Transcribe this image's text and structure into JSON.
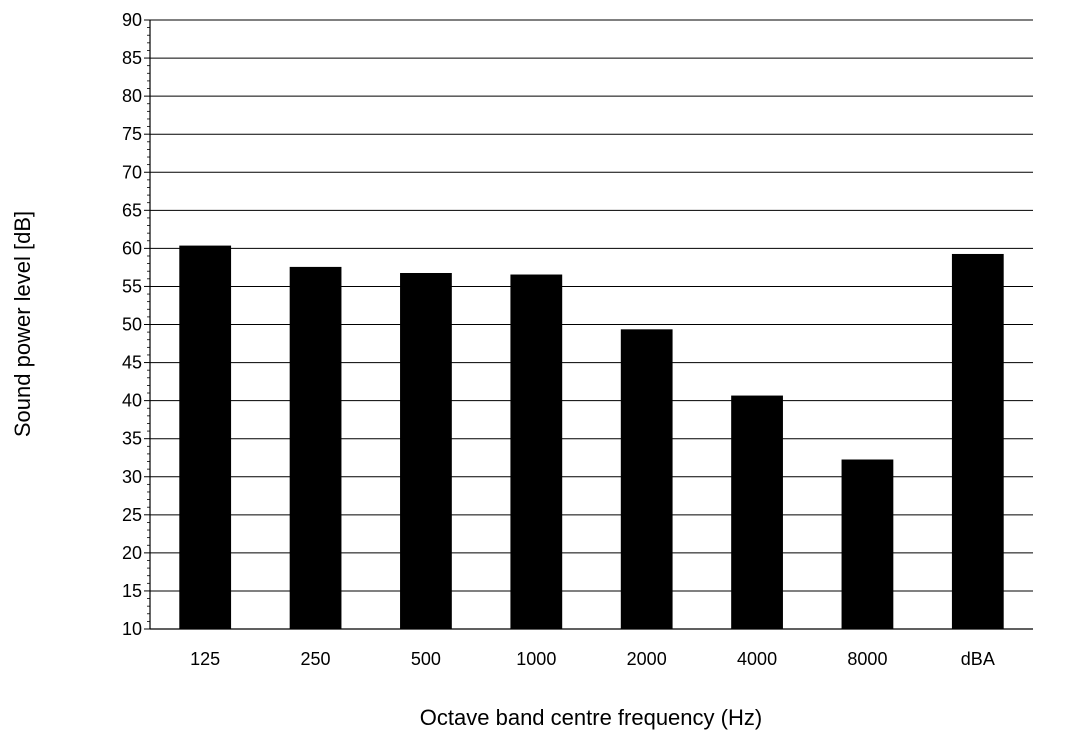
{
  "chart_data": {
    "type": "bar",
    "title": "",
    "xlabel": "Octave band centre frequency (Hz)",
    "ylabel": "Sound power level [dB]",
    "categories": [
      "125",
      "250",
      "500",
      "1000",
      "2000",
      "4000",
      "8000",
      "dBA"
    ],
    "series": [
      {
        "values": [
          60.3,
          57.5,
          56.7,
          56.5,
          49.3,
          40.6,
          32.2,
          59.2
        ],
        "color": "#000000"
      }
    ],
    "ylim": [
      10,
      90
    ],
    "yticks": [
      "10",
      "15",
      "20",
      "25",
      "30",
      "35",
      "40",
      "45",
      "50",
      "55",
      "60",
      "65",
      "70",
      "75",
      "80",
      "85",
      "90"
    ],
    "grid": "horizontal major gridlines",
    "legend": "none"
  }
}
